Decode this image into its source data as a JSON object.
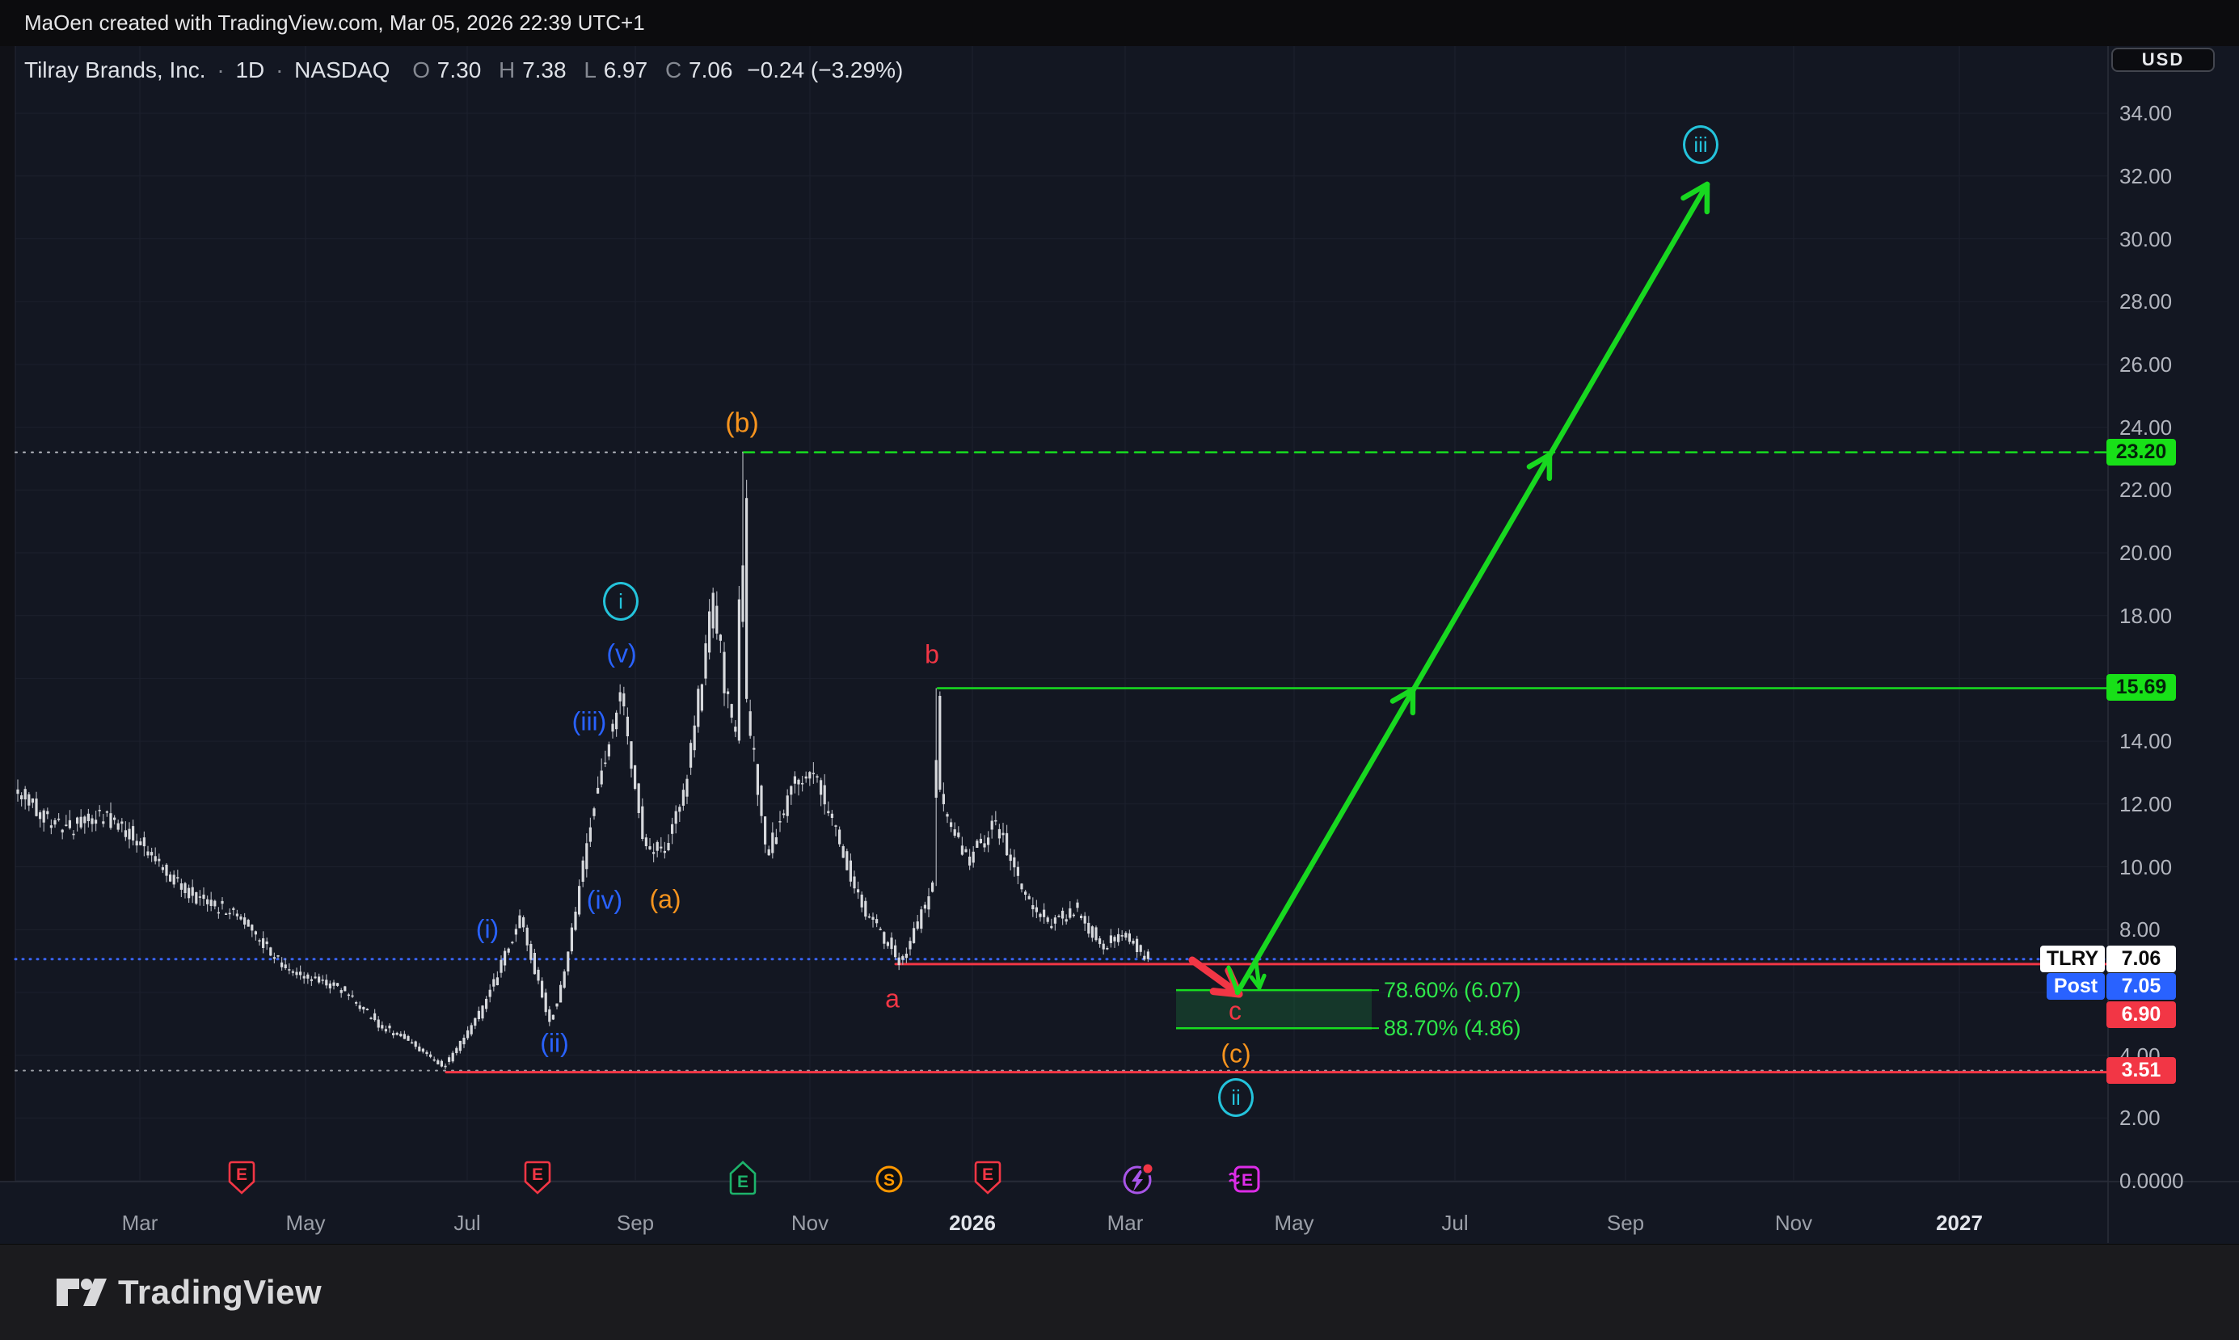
{
  "topbar": {
    "attribution": "MaOen created with TradingView.com, Mar 05, 2026 22:39 UTC+1"
  },
  "legend": {
    "title": "Tilray Brands, Inc.",
    "separator": "·",
    "interval": "1D",
    "exchange": "NASDAQ",
    "o_label": "O",
    "o_value": "7.30",
    "h_label": "H",
    "h_value": "7.38",
    "l_label": "L",
    "l_value": "6.97",
    "c_label": "C",
    "c_value": "7.06",
    "change": "−0.24 (−3.29%)"
  },
  "axis": {
    "currency": "USD",
    "price_ticks": [
      {
        "label": "34.00",
        "price": 34
      },
      {
        "label": "32.00",
        "price": 32
      },
      {
        "label": "30.00",
        "price": 30
      },
      {
        "label": "28.00",
        "price": 28
      },
      {
        "label": "26.00",
        "price": 26
      },
      {
        "label": "24.00",
        "price": 24
      },
      {
        "label": "22.00",
        "price": 22
      },
      {
        "label": "20.00",
        "price": 20
      },
      {
        "label": "18.00",
        "price": 18
      },
      {
        "label": "14.00",
        "price": 14
      },
      {
        "label": "12.00",
        "price": 12
      },
      {
        "label": "10.00",
        "price": 10
      },
      {
        "label": "8.00",
        "price": 8
      },
      {
        "label": "4.00",
        "price": 4
      },
      {
        "label": "2.00",
        "price": 2
      },
      {
        "label": "0.0000",
        "price": 0
      }
    ]
  },
  "badges": {
    "level_2320": "23.20",
    "level_1569": "15.69",
    "symbol": "TLRY",
    "last_price": "7.06",
    "post_label": "Post",
    "post_price": "7.05",
    "level_690": "6.90",
    "level_351": "3.51"
  },
  "footer": {
    "brand": "TradingView"
  },
  "chart_data": {
    "type": "candlestick",
    "title": "Tilray Brands, Inc. 1D NASDAQ",
    "ylabel": "Price (USD)",
    "ylim": [
      0,
      35.8
    ],
    "grid": true,
    "scale": {
      "y0": 1461,
      "per_unit": 38.85,
      "plot_x1": 19,
      "plot_x2": 2608,
      "plot_y1": 57,
      "plot_y2": 1462
    },
    "time_axis": [
      {
        "label": "Mar",
        "x": 173,
        "bold": false
      },
      {
        "label": "May",
        "x": 378,
        "bold": false
      },
      {
        "label": "Jul",
        "x": 578,
        "bold": false
      },
      {
        "label": "Sep",
        "x": 786,
        "bold": false
      },
      {
        "label": "Nov",
        "x": 1002,
        "bold": false
      },
      {
        "label": "2026",
        "x": 1203,
        "bold": true
      },
      {
        "label": "Mar",
        "x": 1392,
        "bold": false
      },
      {
        "label": "May",
        "x": 1601,
        "bold": false
      },
      {
        "label": "Jul",
        "x": 1800,
        "bold": false
      },
      {
        "label": "Sep",
        "x": 2011,
        "bold": false
      },
      {
        "label": "Nov",
        "x": 2219,
        "bold": false
      },
      {
        "label": "2027",
        "x": 2424,
        "bold": true
      }
    ],
    "levels": [
      {
        "name": "wave-b-high-23.20",
        "price": 23.2,
        "segments": [
          {
            "x1": 19,
            "x2": 920,
            "color": "#b9bcc4",
            "dash": "2 8",
            "width": 2
          },
          {
            "x1": 920,
            "x2": 2608,
            "color": "#17dd20",
            "dash": "13 9",
            "width": 2.5
          }
        ]
      },
      {
        "name": "wave-b-minor-high-15.69",
        "price": 15.69,
        "segments": [
          {
            "x1": 1160,
            "x2": 2608,
            "color": "#17dd20",
            "dash": "",
            "width": 2.5
          }
        ]
      },
      {
        "name": "last-close-7.06",
        "price": 7.06,
        "segments": [
          {
            "x1": 19,
            "x2": 2608,
            "color": "#3964fa",
            "dash": "1 8",
            "width": 3
          }
        ]
      },
      {
        "name": "wave-a-low-6.90",
        "price": 6.9,
        "segments": [
          {
            "x1": 1108,
            "x2": 2608,
            "color": "#f23645",
            "dash": "",
            "width": 3
          }
        ]
      },
      {
        "name": "major-low-3.51",
        "price": 3.51,
        "segments": [
          {
            "x1": 19,
            "x2": 2608,
            "color": "#9b9ea6",
            "dash": "2 8",
            "width": 2
          },
          {
            "x1": 552,
            "x2": 2608,
            "color": "#f23645",
            "dash": "",
            "width": 3,
            "dy": 2
          }
        ]
      }
    ],
    "fib": {
      "box": {
        "x1": 1455,
        "x2": 1697,
        "top_price": 6.07,
        "bottom_price": 4.86,
        "fill": "rgba(34,171,73,0.22)",
        "stroke": "#17dd20"
      },
      "labels": [
        {
          "text": "78.60% (6.07)",
          "price": 6.07
        },
        {
          "text": "88.70% (4.86)",
          "price": 4.86
        }
      ],
      "label_x": 1712
    },
    "wave_labels": [
      {
        "text": "(b)",
        "x": 918,
        "y": 524,
        "color": "#f7941e",
        "size": 34,
        "kind": "text"
      },
      {
        "text": "i",
        "x": 768,
        "y": 744,
        "color": "#24c3db",
        "size": 26,
        "kind": "circled"
      },
      {
        "text": "(v)",
        "x": 769,
        "y": 809,
        "color": "#2962ff",
        "size": 32,
        "kind": "text"
      },
      {
        "text": "(iii)",
        "x": 729,
        "y": 893,
        "color": "#2962ff",
        "size": 32,
        "kind": "text"
      },
      {
        "text": "(iv)",
        "x": 748,
        "y": 1114,
        "color": "#2962ff",
        "size": 32,
        "kind": "text"
      },
      {
        "text": "(a)",
        "x": 823,
        "y": 1113,
        "color": "#f7941e",
        "size": 32,
        "kind": "text"
      },
      {
        "text": "(i)",
        "x": 603,
        "y": 1150,
        "color": "#2962ff",
        "size": 32,
        "kind": "text"
      },
      {
        "text": "(ii)",
        "x": 686,
        "y": 1291,
        "color": "#2962ff",
        "size": 32,
        "kind": "text"
      },
      {
        "text": "b",
        "x": 1153,
        "y": 810,
        "color": "#f23645",
        "size": 32,
        "kind": "text"
      },
      {
        "text": "a",
        "x": 1104,
        "y": 1236,
        "color": "#f23645",
        "size": 32,
        "kind": "text"
      },
      {
        "text": "c",
        "x": 1528,
        "y": 1251,
        "color": "#f23645",
        "size": 32,
        "kind": "text"
      },
      {
        "text": "(c)",
        "x": 1529,
        "y": 1304,
        "color": "#f7941e",
        "size": 32,
        "kind": "text"
      },
      {
        "text": "ii",
        "x": 1529,
        "y": 1358,
        "color": "#24c3db",
        "size": 26,
        "kind": "circled"
      },
      {
        "text": "iii",
        "x": 2104,
        "y": 179,
        "color": "#24c3db",
        "size": 26,
        "kind": "circled"
      }
    ],
    "arrows": [
      {
        "name": "red-entry-arrow",
        "color": "#f23645",
        "width": 9,
        "head": 32,
        "pts": [
          [
            1475,
            1188
          ],
          [
            1533,
            1230
          ]
        ],
        "midheads": []
      },
      {
        "name": "green-pullback-tail",
        "color": "#18d820",
        "width": 5,
        "head": 0,
        "pts": [
          [
            1520,
            1197
          ],
          [
            1531,
            1228
          ]
        ],
        "midheads": []
      },
      {
        "name": "green-projection-arrow",
        "color": "#18d820",
        "width": 6.5,
        "head": 34,
        "pts": [
          [
            1531,
            1228
          ],
          [
            2112,
            228
          ]
        ],
        "midheads": [
          [
            1748,
            853
          ],
          [
            1917,
            563
          ]
        ]
      },
      {
        "name": "green-mini-down-arrow",
        "color": "#18d820",
        "width": 5,
        "head": 16,
        "pts": [
          [
            1554,
            1191
          ],
          [
            1558,
            1222
          ]
        ],
        "midheads": []
      }
    ],
    "events": [
      {
        "x": 299,
        "type": "earnings-pin-down",
        "letter": "E",
        "color": "#f23645"
      },
      {
        "x": 665,
        "type": "earnings-pin-down",
        "letter": "E",
        "color": "#f23645"
      },
      {
        "x": 919,
        "type": "earnings-pin-up",
        "letter": "E",
        "color": "#1db36b"
      },
      {
        "x": 1100,
        "type": "split-circle",
        "letter": "S",
        "color": "#ff9800"
      },
      {
        "x": 1222,
        "type": "earnings-pin-down",
        "letter": "E",
        "color": "#f23645"
      },
      {
        "x": 1407,
        "type": "alert-lightning",
        "letter": "",
        "color": "#a855e8"
      },
      {
        "x": 1538,
        "type": "earnings-estimate",
        "letter": "E",
        "color": "#dd2ce8"
      }
    ],
    "candles": {
      "x_start": 22,
      "x_end": 1421,
      "step": 4.6,
      "body_w": 3.2,
      "body_color": "#d7d9dd",
      "wick_color": "#abaeb6",
      "seed": 42,
      "path_keyframes": [
        [
          22,
          12.4
        ],
        [
          80,
          11.2
        ],
        [
          130,
          11.6
        ],
        [
          173,
          10.9
        ],
        [
          230,
          9.2
        ],
        [
          300,
          8.4
        ],
        [
          360,
          6.6
        ],
        [
          420,
          6.2
        ],
        [
          470,
          5.0
        ],
        [
          510,
          4.4
        ],
        [
          551,
          3.62
        ],
        [
          600,
          5.5
        ],
        [
          645,
          8.35
        ],
        [
          682,
          5.05
        ],
        [
          700,
          6.5
        ],
        [
          737,
          12.0
        ],
        [
          770,
          15.5
        ],
        [
          800,
          10.6
        ],
        [
          822,
          10.5
        ],
        [
          850,
          12.5
        ],
        [
          885,
          18.6
        ],
        [
          900,
          15.5
        ],
        [
          914,
          14.2
        ],
        [
          920,
          23.2
        ],
        [
          926,
          14.8
        ],
        [
          935,
          13.5
        ],
        [
          950,
          10.3
        ],
        [
          985,
          12.8
        ],
        [
          1010,
          12.9
        ],
        [
          1040,
          10.8
        ],
        [
          1070,
          8.6
        ],
        [
          1100,
          7.6
        ],
        [
          1117,
          6.92
        ],
        [
          1135,
          8.0
        ],
        [
          1156,
          9.5
        ],
        [
          1160,
          15.69
        ],
        [
          1166,
          12.0
        ],
        [
          1175,
          11.4
        ],
        [
          1200,
          10.2
        ],
        [
          1235,
          11.4
        ],
        [
          1265,
          9.3
        ],
        [
          1300,
          8.1
        ],
        [
          1330,
          8.7
        ],
        [
          1365,
          7.5
        ],
        [
          1395,
          7.9
        ],
        [
          1421,
          7.06
        ]
      ],
      "overrides": [
        {
          "x": 920,
          "high": 23.2,
          "open": 19.6,
          "close": 17.8
        },
        {
          "x": 1160,
          "high": 15.69,
          "open": 12.2,
          "close": 13.4
        },
        {
          "x": 551,
          "low": 3.55
        },
        {
          "x": 1117,
          "low": 6.88
        },
        {
          "x": 1421,
          "open": 7.3,
          "high": 7.38,
          "low": 6.97,
          "close": 7.06
        }
      ]
    }
  }
}
